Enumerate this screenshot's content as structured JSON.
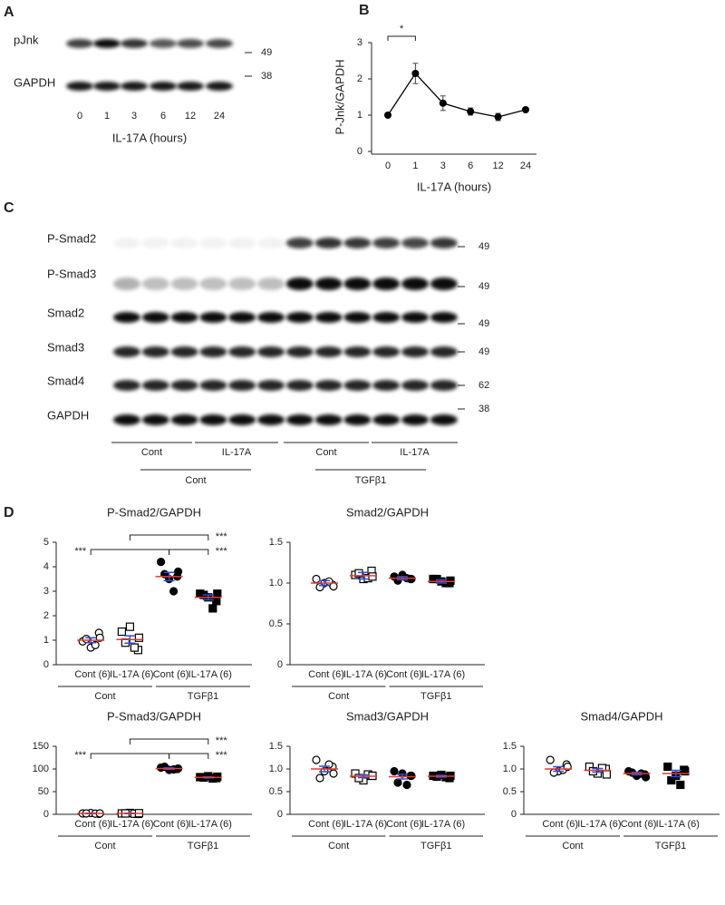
{
  "panel_labels": [
    "A",
    "B",
    "C",
    "D"
  ],
  "blot_a": {
    "rows": [
      "pJnk",
      "GAPDH"
    ],
    "markers": [
      "49",
      "38"
    ],
    "lanes": [
      "0",
      "1",
      "3",
      "6",
      "12",
      "24"
    ],
    "xlabel": "IL-17A (hours)"
  },
  "blot_c": {
    "rows": [
      "P-Smad2",
      "P-Smad3",
      "Smad2",
      "Smad3",
      "Smad4",
      "GAPDH"
    ],
    "markers": [
      "49",
      "49",
      "49",
      "49",
      "62",
      "38"
    ],
    "groups": [
      "Cont",
      "IL-17A",
      "Cont",
      "IL-17A"
    ],
    "supergroups": [
      "Cont",
      "TGFβ1"
    ]
  },
  "chart_data": [
    {
      "type": "line",
      "ylabel": "P-Jnk/GAPDH",
      "xlabel": "IL-17A (hours)",
      "categories": [
        "0",
        "1",
        "3",
        "6",
        "12",
        "24"
      ],
      "values": [
        1.0,
        2.15,
        1.33,
        1.1,
        0.95,
        1.15
      ],
      "errors": [
        0,
        0.28,
        0.2,
        0.1,
        0.1,
        0.03
      ],
      "color": "#000000",
      "ylim": [
        0,
        3
      ],
      "yticks": [
        0,
        1,
        2,
        3
      ],
      "annotations": [
        {
          "text": "*",
          "from": 0,
          "to": 1
        }
      ]
    },
    {
      "type": "dot",
      "title": "P-Smad2/GAPDH",
      "categories": [
        "Cont (6)",
        "IL-17A (6)",
        "Cont (6)",
        "IL-17A (6)"
      ],
      "groups": [
        "Cont",
        "TGFβ1"
      ],
      "markers": [
        "circle-open",
        "square-open",
        "circle",
        "square"
      ],
      "mean_color": "#e8392f",
      "sem_color": "#2a4fd6",
      "points": [
        [
          0.95,
          1.3,
          0.7,
          1.05,
          0.8,
          1.1
        ],
        [
          1.35,
          0.6,
          1.55,
          0.9,
          0.7,
          1.1
        ],
        [
          4.2,
          3.6,
          3.5,
          3.7,
          3.0,
          3.8
        ],
        [
          2.9,
          2.6,
          2.75,
          2.85,
          2.3,
          2.9
        ]
      ],
      "means": [
        1.0,
        1.03,
        3.6,
        2.75
      ],
      "sem": [
        0.1,
        0.15,
        0.17,
        0.1
      ],
      "ylim": [
        0,
        5
      ],
      "yticks": [
        0,
        1,
        2,
        3,
        4,
        5
      ],
      "comparisons": [
        {
          "from": 1,
          "to": 3,
          "label": "***"
        },
        {
          "from": 2,
          "to": 3,
          "label": "***"
        },
        {
          "from": 0,
          "to": 2,
          "label": "***"
        }
      ]
    },
    {
      "type": "dot",
      "title": "Smad2/GAPDH",
      "categories": [
        "Cont (6)",
        "IL-17A (6)",
        "Cont (6)",
        "IL-17A (6)"
      ],
      "groups": [
        "Cont",
        "TGFβ1"
      ],
      "markers": [
        "circle-open",
        "square-open",
        "circle",
        "square"
      ],
      "mean_color": "#e8392f",
      "sem_color": "#2a4fd6",
      "points": [
        [
          1.05,
          0.98,
          1.0,
          0.95,
          1.02,
          0.96
        ],
        [
          1.1,
          1.15,
          1.05,
          1.12,
          1.06,
          1.08
        ],
        [
          1.08,
          1.05,
          1.1,
          1.03,
          1.06,
          1.05
        ],
        [
          1.05,
          1.0,
          1.02,
          1.05,
          1.0,
          1.03
        ]
      ],
      "means": [
        1.0,
        1.09,
        1.06,
        1.02
      ],
      "sem": [
        0.03,
        0.04,
        0.02,
        0.02
      ],
      "ylim": [
        0,
        1.5
      ],
      "yticks": [
        0,
        0.5,
        {
          "value": 1,
          "label": "1.0"
        },
        1.5
      ]
    },
    {
      "type": "dot",
      "title": "P-Smad3/GAPDH",
      "categories": [
        "Cont (6)",
        "IL-17A (6)",
        "Cont (6)",
        "IL-17A (6)"
      ],
      "groups": [
        "Cont",
        "TGFβ1"
      ],
      "markers": [
        "circle-open",
        "square-open",
        "circle",
        "square"
      ],
      "mean_color": "#e8392f",
      "sem_color": "#2a4fd6",
      "points": [
        [
          2,
          1,
          3,
          2,
          1.5,
          2
        ],
        [
          2,
          1,
          3,
          2,
          1.5,
          2.5
        ],
        [
          103,
          100,
          98,
          105,
          99,
          101
        ],
        [
          82,
          80,
          84,
          81,
          79,
          83
        ]
      ],
      "means": [
        2,
        2,
        101,
        81.5
      ],
      "sem": [
        0.5,
        0.5,
        1.5,
        1.2
      ],
      "ylim": [
        0,
        150
      ],
      "yticks": [
        0,
        50,
        100,
        150
      ],
      "comparisons": [
        {
          "from": 1,
          "to": 3,
          "label": "***"
        },
        {
          "from": 2,
          "to": 3,
          "label": "***"
        },
        {
          "from": 0,
          "to": 2,
          "label": "***"
        }
      ]
    },
    {
      "type": "dot",
      "title": "Smad3/GAPDH",
      "categories": [
        "Cont (6)",
        "IL-17A (6)",
        "Cont (6)",
        "IL-17A (6)"
      ],
      "groups": [
        "Cont",
        "TGFβ1"
      ],
      "markers": [
        "circle-open",
        "square-open",
        "circle",
        "square"
      ],
      "mean_color": "#e8392f",
      "sem_color": "#2a4fd6",
      "points": [
        [
          1.2,
          1.05,
          0.95,
          0.8,
          1.1,
          0.9
        ],
        [
          0.9,
          0.85,
          0.75,
          0.8,
          0.88,
          0.85
        ],
        [
          0.95,
          0.85,
          0.9,
          0.7,
          0.65,
          0.85
        ],
        [
          0.85,
          0.8,
          0.87,
          0.83,
          0.82,
          0.85
        ]
      ],
      "means": [
        1.0,
        0.84,
        0.83,
        0.84
      ],
      "sem": [
        0.06,
        0.03,
        0.05,
        0.02
      ],
      "ylim": [
        0,
        1.5
      ],
      "yticks": [
        0,
        0.5,
        {
          "value": 1,
          "label": "1.0"
        },
        1.5
      ]
    },
    {
      "type": "dot",
      "title": "Smad4/GAPDH",
      "categories": [
        "Cont (6)",
        "IL-17A (6)",
        "Cont (6)",
        "IL-17A (6)"
      ],
      "groups": [
        "Cont",
        "TGFβ1"
      ],
      "markers": [
        "circle-open",
        "square-open",
        "circle",
        "square"
      ],
      "mean_color": "#e8392f",
      "sem_color": "#2a4fd6",
      "points": [
        [
          1.2,
          1.1,
          0.95,
          0.92,
          0.98,
          1.05
        ],
        [
          1.05,
          1.0,
          0.9,
          0.95,
          1.02,
          0.88
        ],
        [
          0.95,
          0.88,
          0.85,
          0.92,
          0.9,
          0.82
        ],
        [
          1.05,
          0.98,
          0.85,
          0.75,
          0.65,
          0.95
        ]
      ],
      "means": [
        1.0,
        0.97,
        0.9,
        0.9
      ],
      "sem": [
        0.05,
        0.04,
        0.03,
        0.07
      ],
      "ylim": [
        0,
        1.5
      ],
      "yticks": [
        0,
        0.5,
        {
          "value": 1,
          "label": "1.0"
        },
        1.5
      ]
    }
  ]
}
